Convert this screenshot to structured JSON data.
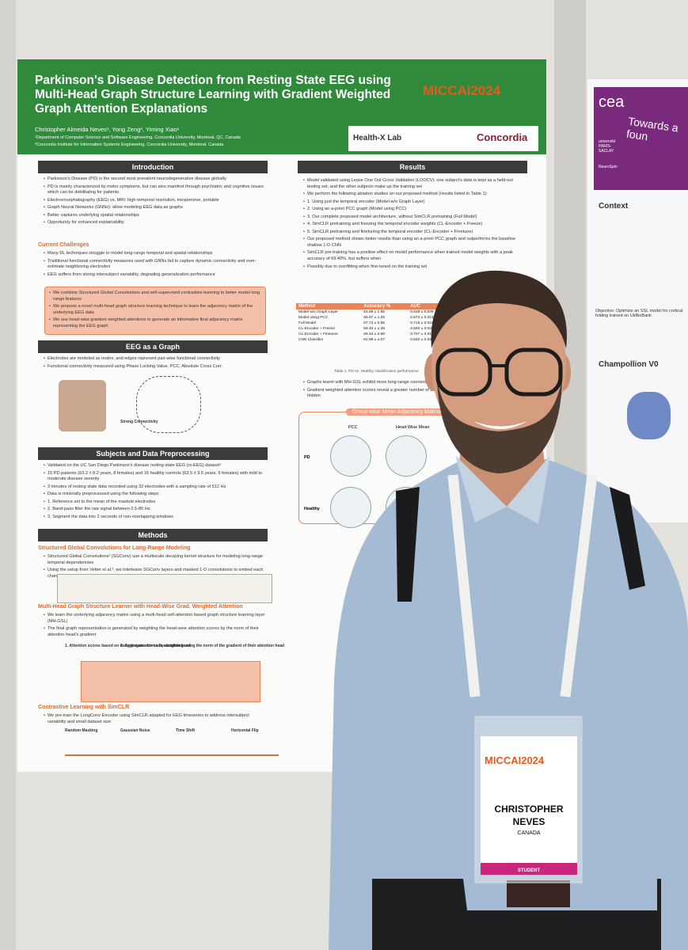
{
  "poster": {
    "title": "Parkinson's Disease Detection from Resting State EEG using Multi-Head Graph Structure Learning with Gradient Weighted Graph Attention Explanations",
    "authors": "Christopher Almeida Neves¹, Yong Zeng², Yiming Xiao¹",
    "affiliations": [
      "¹Department of Computer Science and Software Engineering, Concordia University, Montreal, QC, Canada",
      "²Concordia Institute for Information Systems Engineering, Concordia University, Montreal, Canada"
    ],
    "logos": [
      "MICCAI2024",
      "Health-X Lab",
      "Concordia"
    ],
    "left_column": [
      {
        "heading": "Introduction",
        "lines": [
          "Parkinson's Disease (PD) is the second most prevalent neurodegenerative disease globally",
          "PD is mainly characterized by motor symptoms, but can also manifest through psychiatric and cognitive issues which can be debilitating for patients",
          "Electroencephalography (EEG) vs. MRI: high temporal resolution, inexpensive, portable",
          "Graph Neural Networks (GNNs): allow modeling EEG data as graphs",
          "Better captures underlying spatial relationships",
          "Opportunity for enhanced explainability"
        ]
      },
      {
        "heading": "Current Challenges",
        "lines": [
          "Many DL techniques struggle to model long-range temporal and spatial relationships",
          "Traditional functional connectivity measures used with GNNs fail to capture dynamic connectivity and over-estimate neighboring electrodes",
          "EEG suffers from strong intersubject variability, degrading generalization performance"
        ]
      },
      {
        "lines": [
          "We combine Structured Global Convolutions and self-supervised contrastive learning to better model long range features",
          "We propose a novel multi-head graph structure learning technique to learn the adjacency matrix of the underlying EEG data",
          "We use head-wise gradient weighted attentions to generate an informative final adjacency matrix representing the EEG graph"
        ]
      },
      {
        "heading": "EEG as a Graph",
        "lines": [
          "Electrodes are modeled as nodes, and edges represent pair-wise functional connectivity",
          "Functional connectivity measured using Phase Locking Value, PCC, Absolute Cross Corr."
        ],
        "figure_labels": [
          "Weak Connectivity",
          "Strong Connectivity"
        ]
      },
      {
        "heading": "Subjects and Data Preprocessing",
        "lines": [
          "Validated on the UC San Diego Parkinson's disease resting-state EEG (rs-EEG) dataset¹",
          "15 PD patients (63.2 ± 8.2 years, 8 females) and 16 healthy controls (63.5 ± 9.6 years, 9 females) with mild to moderate disease severity",
          "3 minutes of resting state data recorded using 32 electrodes with a sampling rate of 512 Hz",
          "Data is minimally preprocessed using the following steps:",
          "1. Reference set to the mean of the mastoid electrodes",
          "2. Band-pass filter the raw signal between 0.5-80 Hz",
          "3. Segment the data into 2 seconds of non-overlapping windows"
        ]
      },
      {
        "heading": "Methods",
        "lines": []
      },
      {
        "heading": "Structured Global Convolutions for Long-Range Modeling",
        "lines": [
          "Structured Global Convolutions² (SGConv) use a multiscale decaying kernel structure for modeling long-range temporal dependencies",
          "Using the setup from Vetter et al.³, we interleave SGConv layers and masked 1-D convolutions to embed each channel in a higher dimensional space"
        ],
        "figure_labels": [
          "LongConv Encoder",
          "MH-GSL",
          "Chebyshev GNN"
        ]
      },
      {
        "heading": "Multi-Head Graph Structure Learner with Head-Wise Grad. Weighted Attention",
        "lines": [
          "We learn the underlying adjacency matrix using a multi-head self-attention based graph structure learning layer (MH-GSL)",
          "The final graph representation is generated by weighting the head-wise attention scores by the norm of their attention head's gradient"
        ],
        "figure_labels": [
          "1. Attention scores based on node features for each attention head",
          "2. Aggregate scores by weighting using the norm of the gradient of their attention head"
        ]
      },
      {
        "heading": "Contrastive Learning with SimCLR",
        "lines": [
          "We pre-train the LongConv Encoder using SimCLR adapted for EEG timeseries to address intersubject variability and small dataset size"
        ],
        "figure_labels": [
          "Random Masking",
          "Gaussian Noise",
          "Time Shift",
          "Horizontal Flip"
        ]
      }
    ],
    "right_column": [
      {
        "heading": "Results",
        "lines": [
          "Model validated using Leave One Out Cross Validation (LOOCV): one subject's data is kept as a held-out testing set, and the other subjects make up the training set",
          "We perform the following ablation studies on our proposed method (results listed in Table 1):",
          "1. Using just the temporal encoder (Model w/o Graph Layer)",
          "2. Using an a-priori PCC graph (Model using PCC)",
          "3. Our complete proposed model architecture, without SimCLR pretraining (Full Model)",
          "4. SimCLR pretraining and freezing the temporal encoder weights (CL-Encoder + Freeze)",
          "5. SimCLR pretraining and finetuning the temporal encoder (CL-Encoder + Finetune)",
          "Our proposed method shows better results than using an a-priori PCC graph and outperforms the baseline shallow 1-D CNN",
          "SimCLR pre-training has a positive effect on model performance when trained model weights with a peak accuracy of 69.40%, but suffers when",
          "Possibly due to overfitting when fine-tuned on the training set"
        ]
      }
    ],
    "table": {
      "header": [
        "Method",
        "Accuracy %",
        "AUC",
        "F1-Score"
      ],
      "rows": [
        [
          "Model w/o Graph Layer",
          "64.68 ± 1.65",
          "0.638 ± 0.039",
          "0.643 ±"
        ],
        [
          "Model using PCC",
          "66.97 ± 1.29",
          "0.673 ± 0.013",
          "0.663 ±"
        ],
        [
          "Full Model",
          "67.73 ± 0.85",
          "0.715 ± 0.024",
          "0.672 ±"
        ],
        [
          "CL-Encoder + Freeze",
          "69.40 ± 1.39",
          "0.690 ± 0.036",
          "0.682 ±"
        ],
        [
          "CL-Encoder + Finetune",
          "66.34 ± 2.68",
          "0.707 ± 0.010",
          "0.658 ±"
        ],
        [
          "CNN Classifier",
          "62.99 ± 4.07",
          "0.640 ± 0.040",
          "0.629 ±"
        ]
      ],
      "caption": "Table 1. PD vs. Healthy classification performance"
    },
    "results_more": [
      "Graphs learnt with MH-GSL exhibit more long-range connectivity",
      "Gradient weighted attention scores reveal a greater number of classification task that would otherwise remain hidden"
    ],
    "figure": {
      "title": "Group-wise Mean Adjacency Matrices",
      "columns": [
        "PCC",
        "Head-Wise Mean"
      ],
      "rows": [
        "PD",
        "Healthy"
      ]
    }
  },
  "side_poster": {
    "logo": "cea",
    "title": "Towards a foun",
    "institutions": [
      "université PARIS-SACLAY",
      "NeuroSpin"
    ],
    "sections": [
      "Context",
      "Champollion V0"
    ],
    "objective": "Objective: Optimize an SSL model for cortical folding trained on UkBioBank"
  },
  "badge": {
    "event": "MICCAI2024",
    "name": [
      "CHRISTOPHER",
      "NEVES"
    ],
    "country": "CANADA",
    "role": "STUDENT"
  }
}
